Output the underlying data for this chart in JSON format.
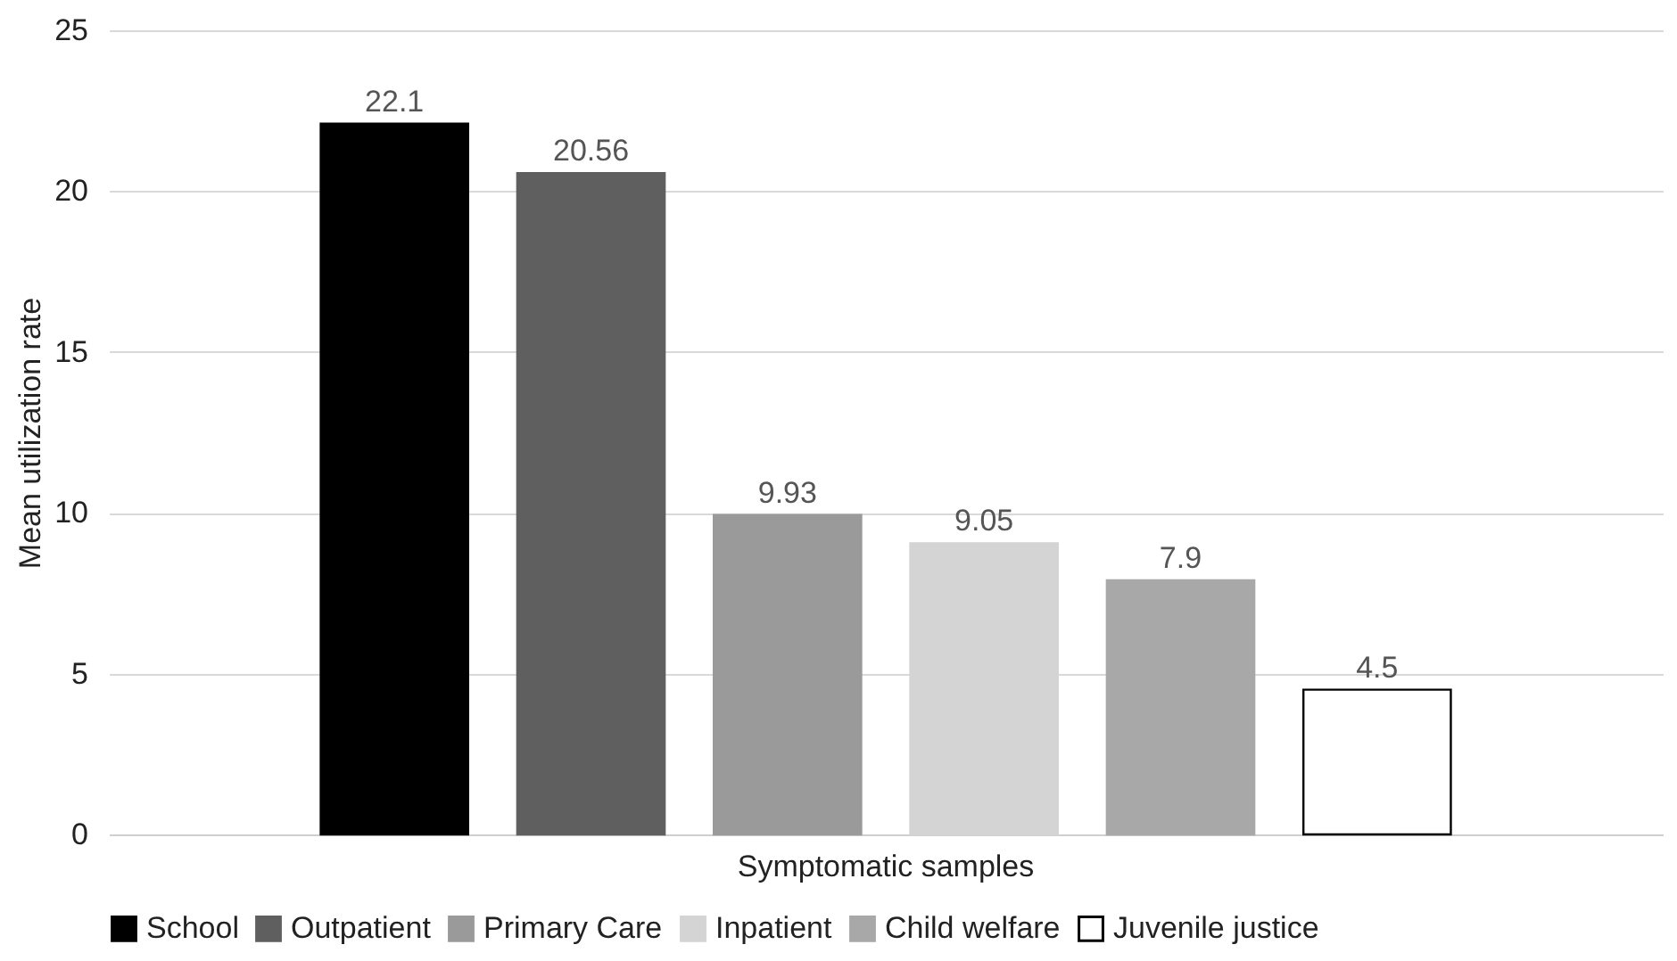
{
  "chart_data": {
    "type": "bar",
    "categories": [
      "Symptomatic samples"
    ],
    "ylabel": "Mean utilization rate",
    "series": [
      {
        "name": "School",
        "color": "#000000",
        "values": [
          22.1
        ]
      },
      {
        "name": "Outpatient",
        "color": "#5f5f5f",
        "values": [
          20.56
        ]
      },
      {
        "name": "Primary Care",
        "color": "#9a9a9a",
        "values": [
          9.93
        ]
      },
      {
        "name": "Inpatient",
        "color": "#d4d4d4",
        "values": [
          9.05
        ]
      },
      {
        "name": "Child welfare",
        "color": "#a8a8a8",
        "values": [
          7.9
        ]
      },
      {
        "name": "Juvenile justice",
        "color": "#ffffff",
        "values": [
          4.5
        ]
      }
    ],
    "ylim": [
      0,
      25
    ],
    "yticks": [
      0,
      5,
      10,
      15,
      20,
      25
    ],
    "grid": "y",
    "legend": "bottom",
    "data_labels": true
  }
}
